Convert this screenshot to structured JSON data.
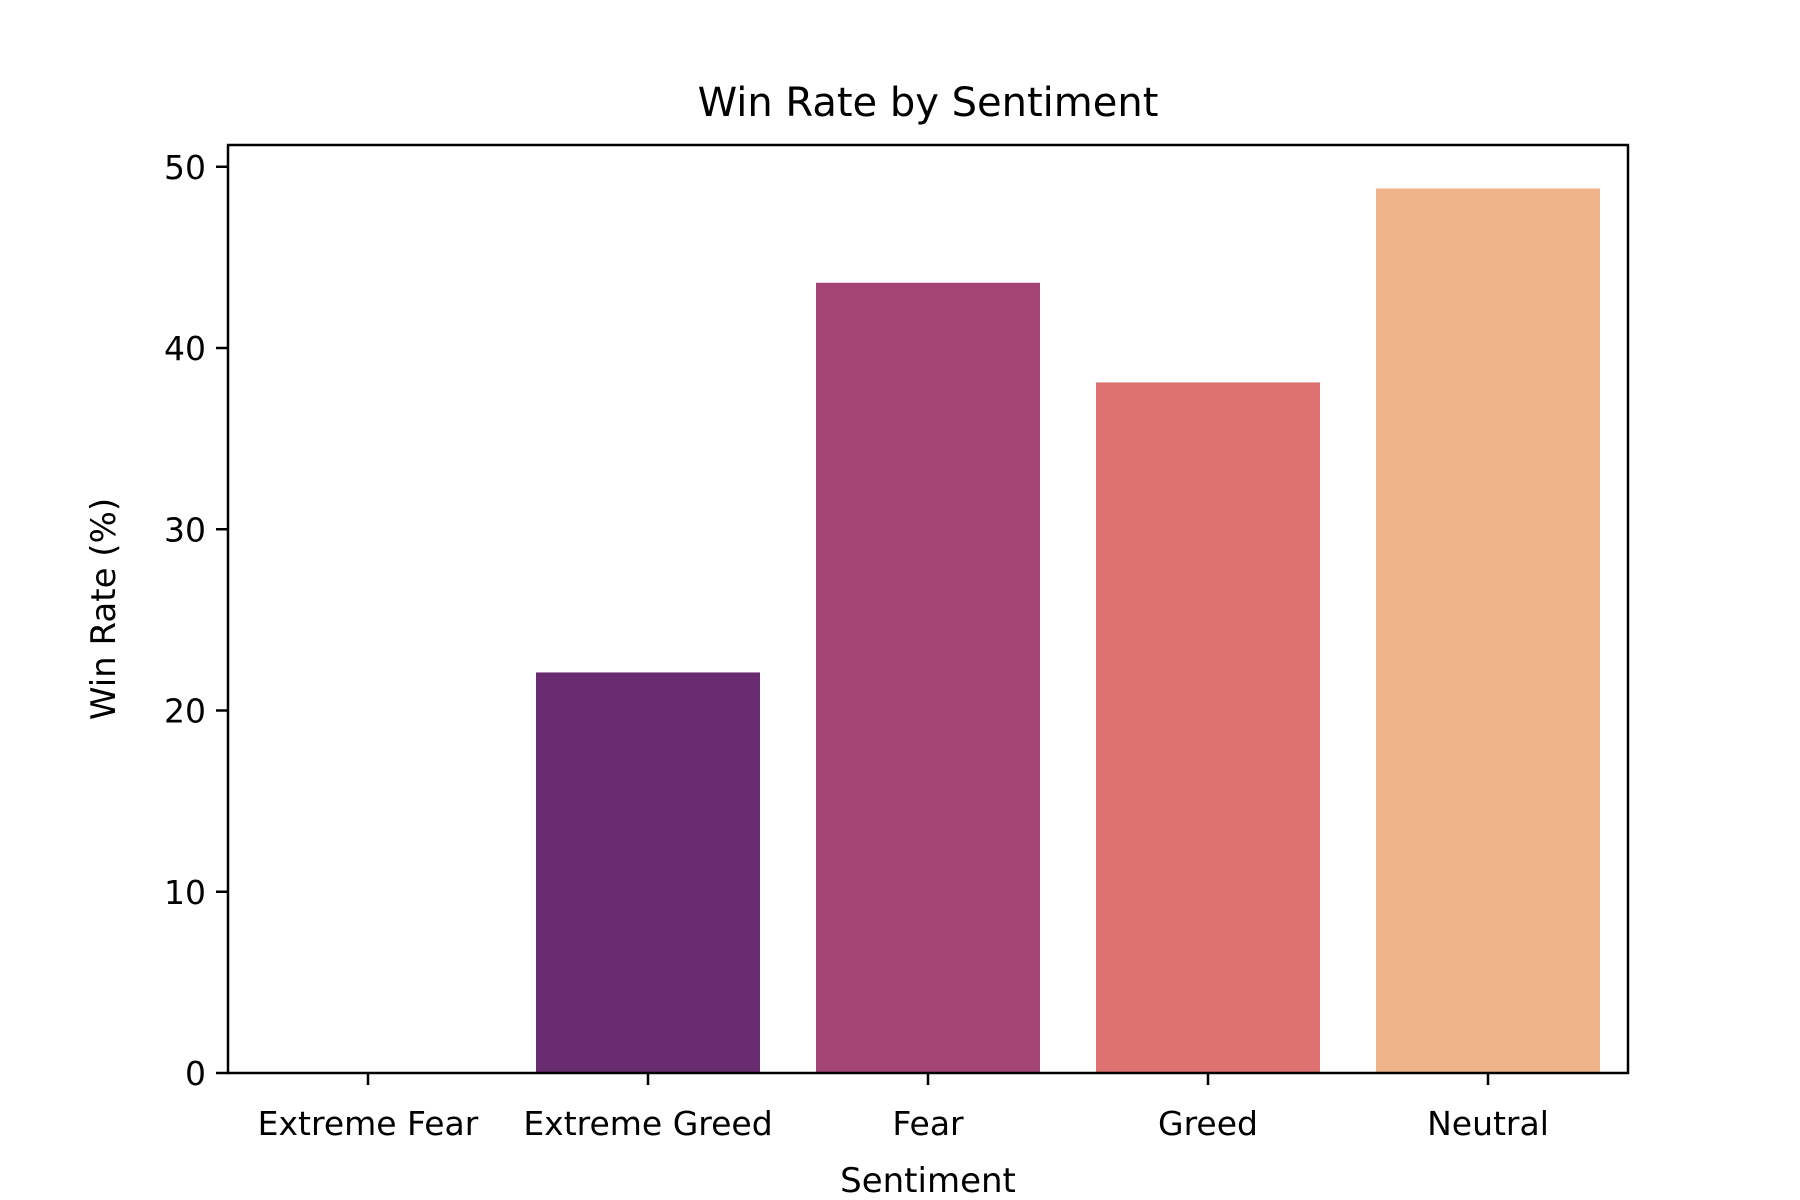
{
  "chart_data": {
    "type": "bar",
    "title": "Win Rate by Sentiment",
    "xlabel": "Sentiment",
    "ylabel": "Win Rate (%)",
    "categories": [
      "Extreme Fear",
      "Extreme Greed",
      "Fear",
      "Greed",
      "Neutral"
    ],
    "values": [
      0,
      22.1,
      43.6,
      38.1,
      48.8
    ],
    "colors": [
      "#2b1147",
      "#6a2c70",
      "#a44475",
      "#dd7270",
      "#eeb389"
    ],
    "ylim": [
      0,
      51.2
    ],
    "yticks": [
      0,
      10,
      20,
      30,
      40,
      50
    ],
    "grid": false,
    "legend": "none"
  }
}
